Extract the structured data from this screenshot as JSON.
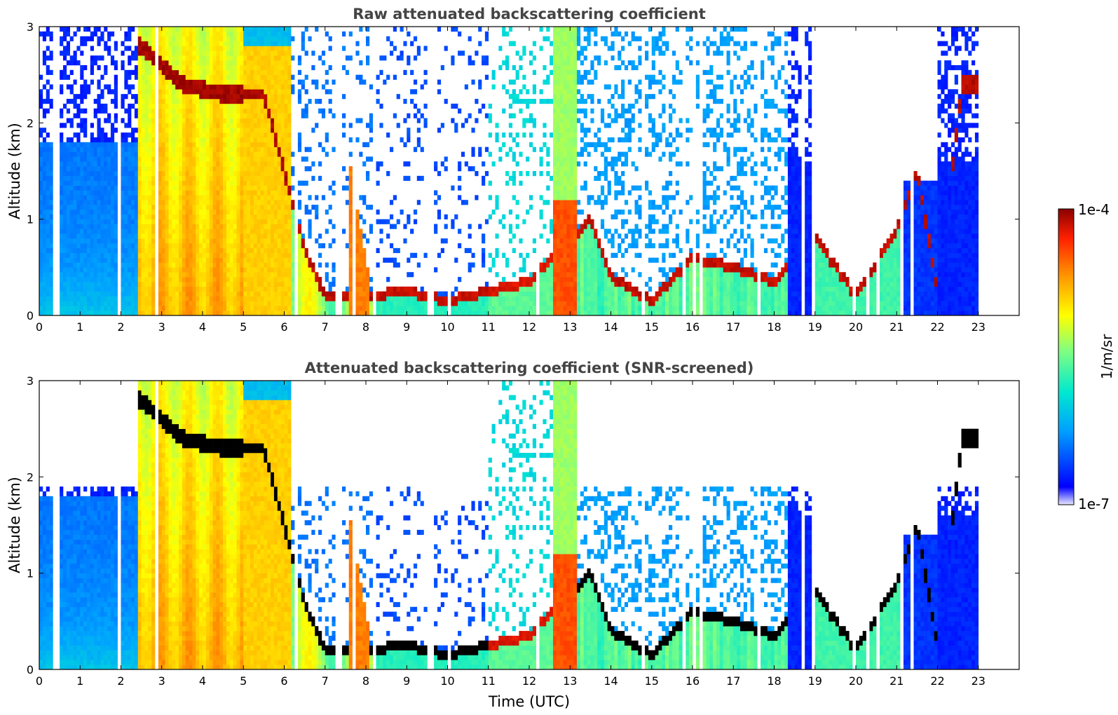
{
  "chart_data": [
    {
      "type": "heatmap",
      "title": "Raw attenuated backscattering coefficient",
      "xlabel": "",
      "ylabel": "Altitude (km)",
      "xlim": [
        0,
        24
      ],
      "ylim": [
        0,
        3
      ],
      "xticks": [
        "0",
        "1",
        "2",
        "3",
        "4",
        "5",
        "6",
        "7",
        "8",
        "9",
        "10",
        "11",
        "12",
        "13",
        "14",
        "15",
        "16",
        "17",
        "18",
        "19",
        "20",
        "21",
        "22",
        "23"
      ],
      "yticks": [
        "0",
        "1",
        "2",
        "3"
      ],
      "data_time_range": [
        0,
        23
      ],
      "cloud_layer_base_km": [
        {
          "t": 2.5,
          "alt": 2.8
        },
        {
          "t": 3.5,
          "alt": 2.4
        },
        {
          "t": 4.5,
          "alt": 2.3
        },
        {
          "t": 5.5,
          "alt": 2.3
        },
        {
          "t": 6.5,
          "alt": 0.7
        },
        {
          "t": 7.0,
          "alt": 0.2
        },
        {
          "t": 8.0,
          "alt": 0.2
        },
        {
          "t": 9.0,
          "alt": 0.25
        },
        {
          "t": 10.0,
          "alt": 0.15
        },
        {
          "t": 11.0,
          "alt": 0.25
        },
        {
          "t": 12.0,
          "alt": 0.35
        },
        {
          "t": 13.5,
          "alt": 1.0
        },
        {
          "t": 14.0,
          "alt": 0.4
        },
        {
          "t": 15.0,
          "alt": 0.15
        },
        {
          "t": 16.0,
          "alt": 0.6
        },
        {
          "t": 17.0,
          "alt": 0.5
        },
        {
          "t": 18.0,
          "alt": 0.35
        },
        {
          "t": 19.0,
          "alt": 0.8
        },
        {
          "t": 20.0,
          "alt": 0.2
        },
        {
          "t": 21.0,
          "alt": 0.9
        },
        {
          "t": 21.5,
          "alt": 1.5
        },
        {
          "t": 22.0,
          "alt": 0.25
        },
        {
          "t": 22.6,
          "alt": 2.4
        }
      ],
      "screened": false
    },
    {
      "type": "heatmap",
      "title": "Attenuated backscattering coefficient (SNR-screened)",
      "xlabel": "Time (UTC)",
      "ylabel": "Altitude (km)",
      "xlim": [
        0,
        24
      ],
      "ylim": [
        0,
        3
      ],
      "xticks": [
        "0",
        "1",
        "2",
        "3",
        "4",
        "5",
        "6",
        "7",
        "8",
        "9",
        "10",
        "11",
        "12",
        "13",
        "14",
        "15",
        "16",
        "17",
        "18",
        "19",
        "20",
        "21",
        "22",
        "23"
      ],
      "yticks": [
        "0",
        "1",
        "2",
        "3"
      ],
      "data_time_range": [
        0,
        23
      ],
      "screened": true
    }
  ],
  "colorbar": {
    "max_label": "1e-4",
    "min_label": "1e-7",
    "unit_label": "1/m/sr",
    "scale": "log",
    "range": [
      1e-07,
      0.0001
    ],
    "colormap": [
      "#e8e8ff",
      "#0000ff",
      "#00a0ff",
      "#00e8d0",
      "#80ff80",
      "#ffff00",
      "#ff9000",
      "#ff2000",
      "#8b0000"
    ]
  }
}
